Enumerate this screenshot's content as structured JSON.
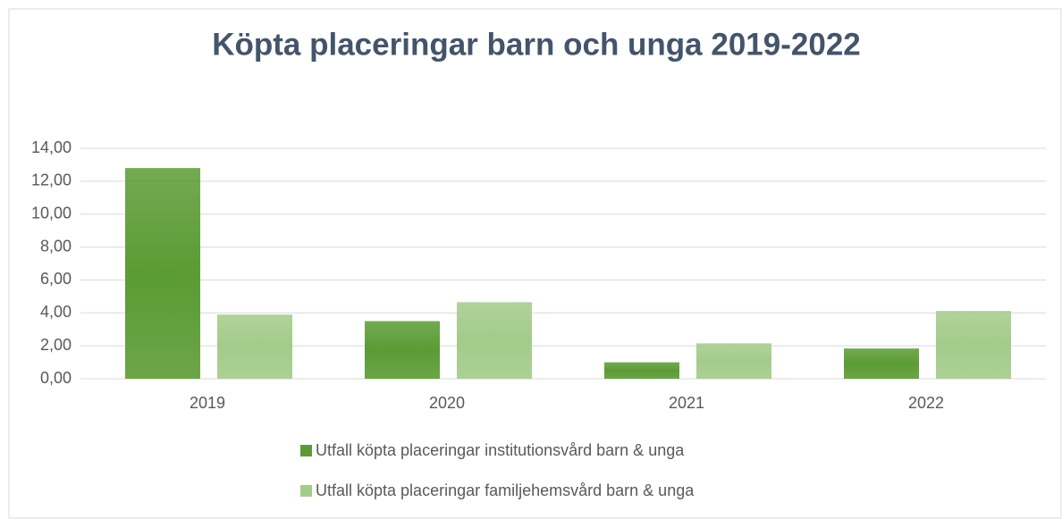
{
  "chart_data": {
    "type": "bar",
    "title": "Köpta placeringar barn och unga 2019-2022",
    "categories": [
      "2019",
      "2020",
      "2021",
      "2022"
    ],
    "series": [
      {
        "name": "Utfall köpta placeringar institutionsvård barn & unga",
        "color": "#5b9b34",
        "values": [
          12.8,
          3.5,
          1.0,
          1.84
        ]
      },
      {
        "name": "Utfall köpta placeringar familjehemsvård barn & unga",
        "color": "#a3cb8a",
        "values": [
          3.9,
          4.65,
          2.15,
          4.12
        ]
      }
    ],
    "ylim": [
      0,
      14
    ],
    "yticks": [
      {
        "value": 0,
        "label": "0,00"
      },
      {
        "value": 2,
        "label": "2,00"
      },
      {
        "value": 4,
        "label": "4,00"
      },
      {
        "value": 6,
        "label": "6,00"
      },
      {
        "value": 8,
        "label": "8,00"
      },
      {
        "value": 10,
        "label": "10,00"
      },
      {
        "value": 12,
        "label": "12,00"
      },
      {
        "value": 14,
        "label": "14,00"
      }
    ],
    "grid": true,
    "legend": "bottom"
  }
}
